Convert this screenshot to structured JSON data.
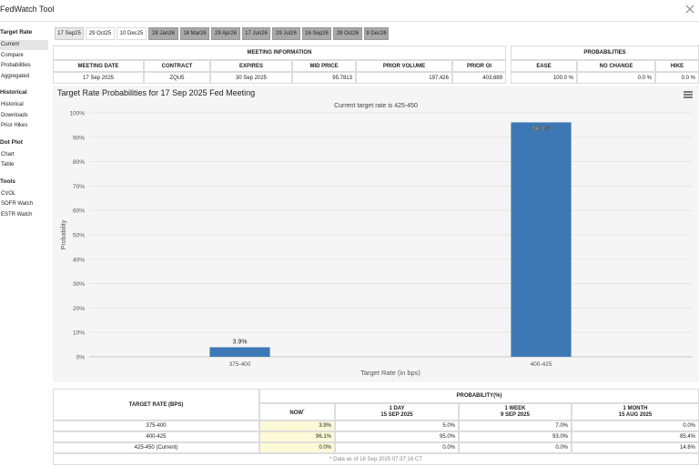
{
  "header": {
    "title": "FedWatch Tool"
  },
  "sidebar": [
    {
      "heading": "Target Rate",
      "items": [
        "Current",
        "Compare",
        "Probabilities",
        "Aggregated"
      ]
    },
    {
      "heading": "Historical",
      "items": [
        "Historical",
        "Downloads",
        "Prior Hikes"
      ]
    },
    {
      "heading": "Dot Plot",
      "items": [
        "Chart",
        "Table"
      ]
    },
    {
      "heading": "Tools",
      "items": [
        "CVOL",
        "SOFR Watch",
        "ESTR Watch"
      ]
    }
  ],
  "tabs": [
    "17 Sep25",
    "29 Oct25",
    "10 Dec25",
    "28 Jan26",
    "18 Mar26",
    "29 Apr26",
    "17 Jun26",
    "29 Jul26",
    "16 Sep26",
    "28 Oct26",
    "9 Dec26"
  ],
  "meeting_info": {
    "title": "MEETING INFORMATION",
    "columns": [
      "MEETING DATE",
      "CONTRACT",
      "EXPIRES",
      "MID PRICE",
      "PRIOR VOLUME",
      "PRIOR OI"
    ],
    "row": [
      "17 Sep 2025",
      "ZQU5",
      "30 Sep 2025",
      "95.7813",
      "197,426",
      "403,689"
    ]
  },
  "probabilities": {
    "title": "PROBABILITIES",
    "columns": [
      "EASE",
      "NO CHANGE",
      "HIKE"
    ],
    "row": [
      "100.0 %",
      "0.0 %",
      "0.0 %"
    ]
  },
  "chart_data": {
    "type": "bar",
    "title": "Target Rate Probabilities for 17 Sep 2025 Fed Meeting",
    "subtitle": "Current target rate is 425-450",
    "x_label": "Target Rate (in bps)",
    "y_label": "Probability",
    "categories": [
      "375-400",
      "400-425"
    ],
    "values": [
      3.9,
      96.1
    ],
    "value_labels": [
      "3.9%",
      "96.1%"
    ],
    "color": "#3d78b5",
    "ylim": [
      0,
      100
    ],
    "yticks": [
      {
        "value": 0,
        "label": "0%"
      },
      {
        "value": 10,
        "label": "10%"
      },
      {
        "value": 20,
        "label": "20%"
      },
      {
        "value": 30,
        "label": "30%"
      },
      {
        "value": 40,
        "label": "40%"
      },
      {
        "value": 50,
        "label": "50%"
      },
      {
        "value": 60,
        "label": "60%"
      },
      {
        "value": 70,
        "label": "70%"
      },
      {
        "value": 80,
        "label": "80%"
      },
      {
        "value": 90,
        "label": "90%"
      },
      {
        "value": 100,
        "label": "100%"
      }
    ],
    "grid": true
  },
  "probability_table": {
    "rate_header": "TARGET RATE (BPS)",
    "group_header": "PROBABILITY(%)",
    "periods": [
      {
        "label": "NOW",
        "marker": "*"
      },
      {
        "label": "1 DAY",
        "date": "15 SEP 2025"
      },
      {
        "label": "1 WEEK",
        "date": "9 SEP 2025"
      },
      {
        "label": "1 MONTH",
        "date": "15 AUG 2025"
      }
    ],
    "rows": [
      [
        "375-400",
        "3.9%",
        "5.0%",
        "7.0%",
        "0.0%"
      ],
      [
        "400-425",
        "96.1%",
        "95.0%",
        "93.0%",
        "85.4%"
      ],
      [
        "425-450 (Current)",
        "0.0%",
        "0.0%",
        "0.0%",
        "14.6%"
      ]
    ],
    "footnote": "* Data as of 16 Sep 2025 07:37:16 CT"
  }
}
